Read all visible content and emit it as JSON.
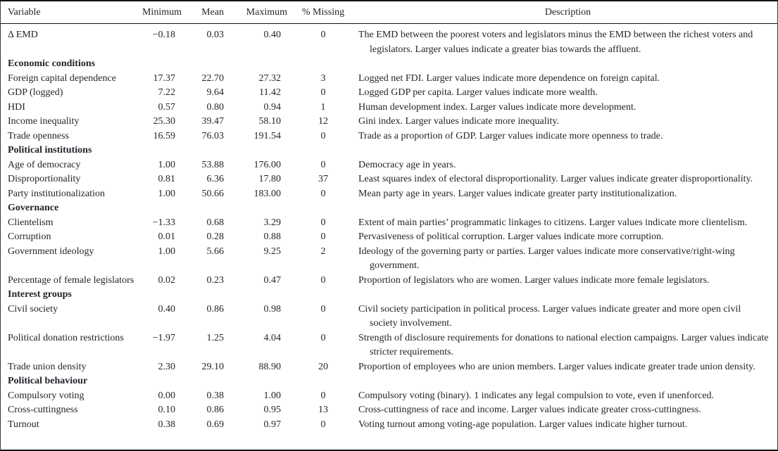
{
  "page": {
    "background": "#ffffff",
    "text_color": "#22252b",
    "rule_color": "#121212"
  },
  "table": {
    "headers": {
      "variable": "Variable",
      "minimum": "Minimum",
      "mean": "Mean",
      "maximum": "Maximum",
      "missing": "% Missing",
      "description": "Description"
    },
    "rows": [
      {
        "type": "data",
        "variable": "Δ EMD",
        "min": "−0.18",
        "mean": "0.03",
        "max": "0.40",
        "missing": "0",
        "description": "The EMD between the poorest voters and legislators minus the EMD between the richest voters and legislators. Larger values indicate a greater bias towards the affluent."
      },
      {
        "type": "section",
        "label": "Economic conditions"
      },
      {
        "type": "data",
        "variable": "Foreign capital dependence",
        "min": "17.37",
        "mean": "22.70",
        "max": "27.32",
        "missing": "3",
        "description": "Logged net FDI. Larger values indicate more dependence on foreign capital."
      },
      {
        "type": "data",
        "variable": "GDP (logged)",
        "min": "7.22",
        "mean": "9.64",
        "max": "11.42",
        "missing": "0",
        "description": "Logged GDP per capita. Larger values indicate more wealth."
      },
      {
        "type": "data",
        "variable": "HDI",
        "min": "0.57",
        "mean": "0.80",
        "max": "0.94",
        "missing": "1",
        "description": "Human development index. Larger values indicate more development."
      },
      {
        "type": "data",
        "variable": "Income inequality",
        "min": "25.30",
        "mean": "39.47",
        "max": "58.10",
        "missing": "12",
        "description": "Gini index. Larger values indicate more inequality."
      },
      {
        "type": "data",
        "variable": "Trade openness",
        "min": "16.59",
        "mean": "76.03",
        "max": "191.54",
        "missing": "0",
        "description": "Trade as a proportion of GDP. Larger values indicate more openness to trade."
      },
      {
        "type": "section",
        "label": "Political institutions"
      },
      {
        "type": "data",
        "variable": "Age of democracy",
        "min": "1.00",
        "mean": "53.88",
        "max": "176.00",
        "missing": "0",
        "description": "Democracy age in years."
      },
      {
        "type": "data",
        "variable": "Disproportionality",
        "min": "0.81",
        "mean": "6.36",
        "max": "17.80",
        "missing": "37",
        "description": "Least squares index of electoral disproportionality. Larger values indicate greater disproportionality."
      },
      {
        "type": "data",
        "variable": "Party institutionalization",
        "min": "1.00",
        "mean": "50.66",
        "max": "183.00",
        "missing": "0",
        "description": "Mean party age in years. Larger values indicate greater party institutionalization."
      },
      {
        "type": "section",
        "label": "Governance"
      },
      {
        "type": "data",
        "variable": "Clientelism",
        "min": "−1.33",
        "mean": "0.68",
        "max": "3.29",
        "missing": "0",
        "description": "Extent of main parties’ programmatic linkages to citizens. Larger values indicate more clientelism."
      },
      {
        "type": "data",
        "variable": "Corruption",
        "min": "0.01",
        "mean": "0.28",
        "max": "0.88",
        "missing": "0",
        "description": "Pervasiveness of political corruption. Larger values indicate more corruption."
      },
      {
        "type": "data",
        "variable": "Government ideology",
        "min": "1.00",
        "mean": "5.66",
        "max": "9.25",
        "missing": "2",
        "description": "Ideology of the governing party or parties. Larger values indicate more conservative/right-wing government."
      },
      {
        "type": "data",
        "variable": "Percentage of female legislators",
        "min": "0.02",
        "mean": "0.23",
        "max": "0.47",
        "missing": "0",
        "description": "Proportion of legislators who are women. Larger values indicate more female legislators."
      },
      {
        "type": "section",
        "label": "Interest groups"
      },
      {
        "type": "data",
        "variable": "Civil society",
        "min": "0.40",
        "mean": "0.86",
        "max": "0.98",
        "missing": "0",
        "description": "Civil society participation in political process. Larger values indicate greater and more open civil society involvement."
      },
      {
        "type": "data",
        "variable": "Political donation restrictions",
        "min": "−1.97",
        "mean": "1.25",
        "max": "4.04",
        "missing": "0",
        "description": "Strength of disclosure requirements for donations to national election campaigns. Larger values indicate stricter requirements."
      },
      {
        "type": "data",
        "variable": "Trade union density",
        "min": "2.30",
        "mean": "29.10",
        "max": "88.90",
        "missing": "20",
        "description": "Proportion of employees who are union members. Larger values indicate greater trade union density."
      },
      {
        "type": "section",
        "label": "Political behaviour"
      },
      {
        "type": "data",
        "variable": "Compulsory voting",
        "min": "0.00",
        "mean": "0.38",
        "max": "1.00",
        "missing": "0",
        "description": "Compulsory voting (binary). 1 indicates any legal compulsion to vote, even if unenforced."
      },
      {
        "type": "data",
        "variable": "Cross-cuttingness",
        "min": "0.10",
        "mean": "0.86",
        "max": "0.95",
        "missing": "13",
        "description": "Cross-cuttingness of race and income. Larger values indicate greater cross-cuttingness."
      },
      {
        "type": "data",
        "variable": "Turnout",
        "min": "0.38",
        "mean": "0.69",
        "max": "0.97",
        "missing": "0",
        "description": "Voting turnout among voting-age population. Larger values indicate higher turnout."
      }
    ]
  }
}
